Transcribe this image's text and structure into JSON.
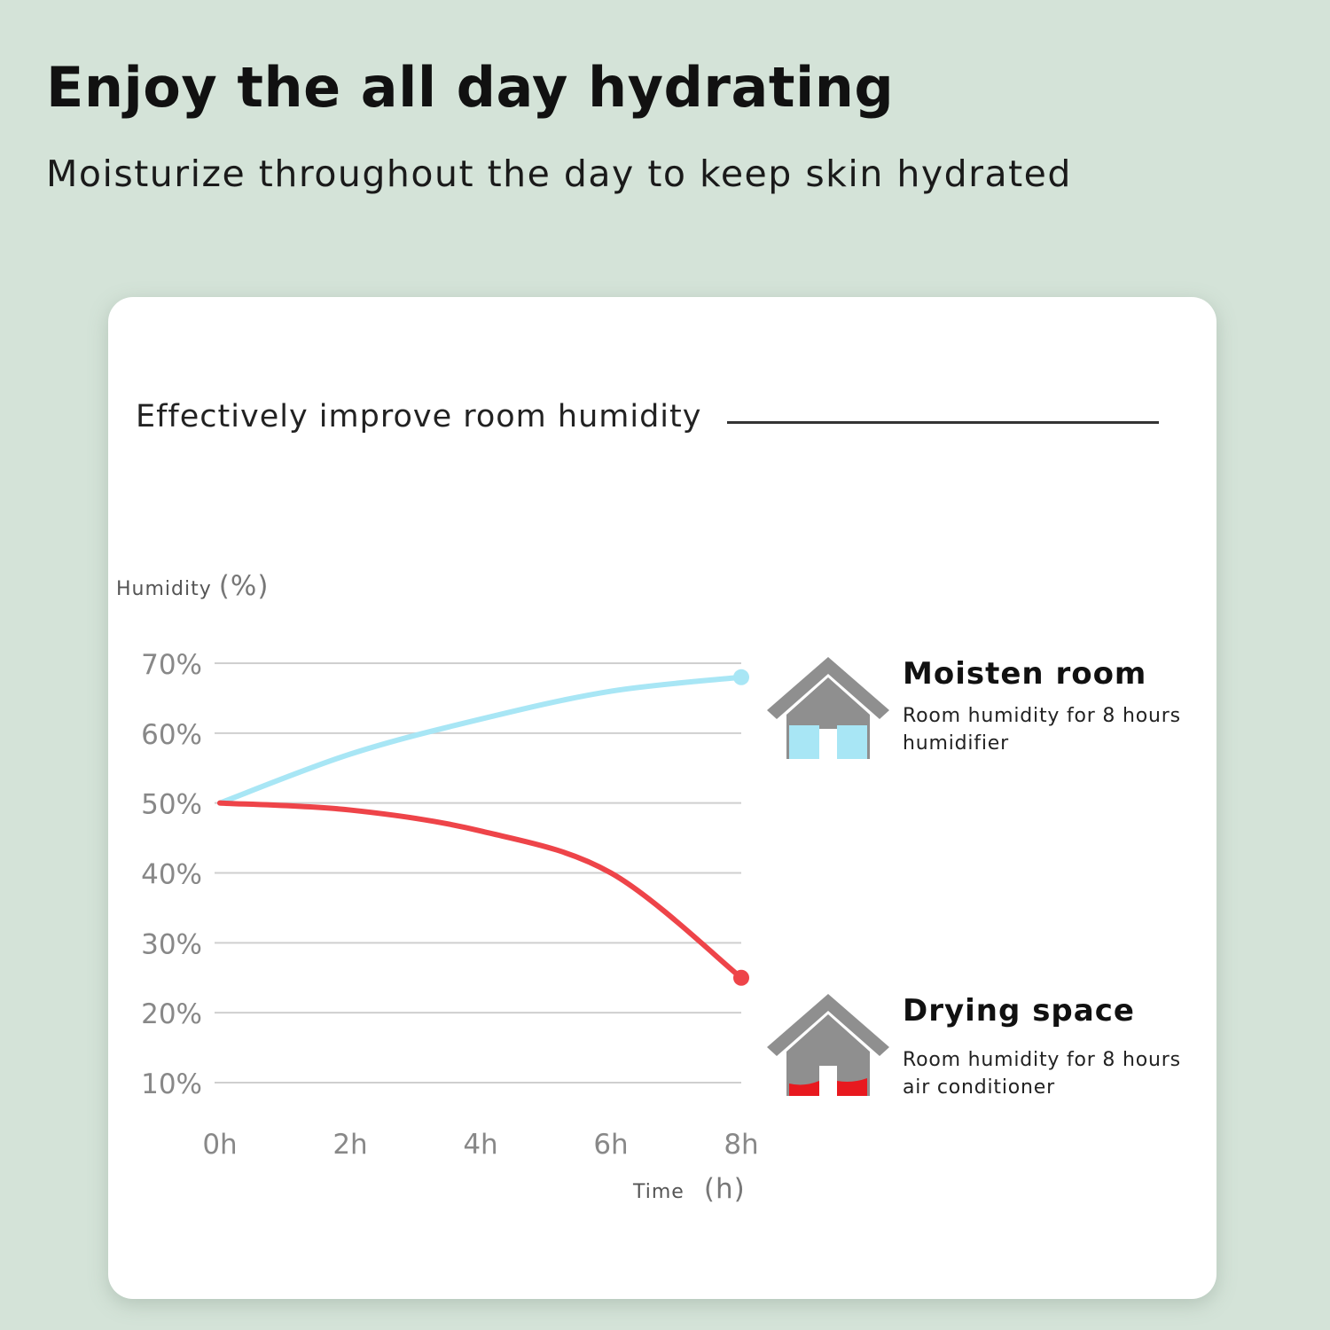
{
  "header": {
    "headline": "Enjoy the all day hydrating",
    "subline": "Moisturize throughout the day to keep skin hydrated"
  },
  "card": {
    "title": "Effectively improve room humidity"
  },
  "legend": {
    "moisten": {
      "title": "Moisten room",
      "line1": "Room humidity for 8 hours",
      "line2": "humidifier",
      "icon": "house-icon",
      "fill_color": "#a8e6f5"
    },
    "drying": {
      "title": "Drying space",
      "line1": "Room humidity for 8 hours",
      "line2": "air conditioner",
      "icon": "house-icon",
      "fill_color": "#e8191f"
    }
  },
  "chart_data": {
    "type": "line",
    "ylabel": "Humidity",
    "ylabel_unit": "(%)",
    "xlabel": "Time",
    "xlabel_unit": "(h)",
    "x": [
      0,
      2,
      4,
      6,
      8
    ],
    "x_tick_labels": [
      "0h",
      "2h",
      "4h",
      "6h",
      "8h"
    ],
    "y_tick_values": [
      70,
      60,
      50,
      40,
      30,
      20,
      10
    ],
    "y_tick_labels": [
      "70%",
      "60%",
      "50%",
      "40%",
      "30%",
      "20%",
      "10%"
    ],
    "ylim": [
      10,
      70
    ],
    "xlim": [
      0,
      8
    ],
    "grid": true,
    "series": [
      {
        "name": "Moisten room",
        "color": "#a8e6f5",
        "values": [
          50,
          57,
          62,
          66,
          68
        ]
      },
      {
        "name": "Drying space",
        "color": "#ee4449",
        "values": [
          50,
          49,
          46,
          40,
          25
        ]
      }
    ]
  }
}
